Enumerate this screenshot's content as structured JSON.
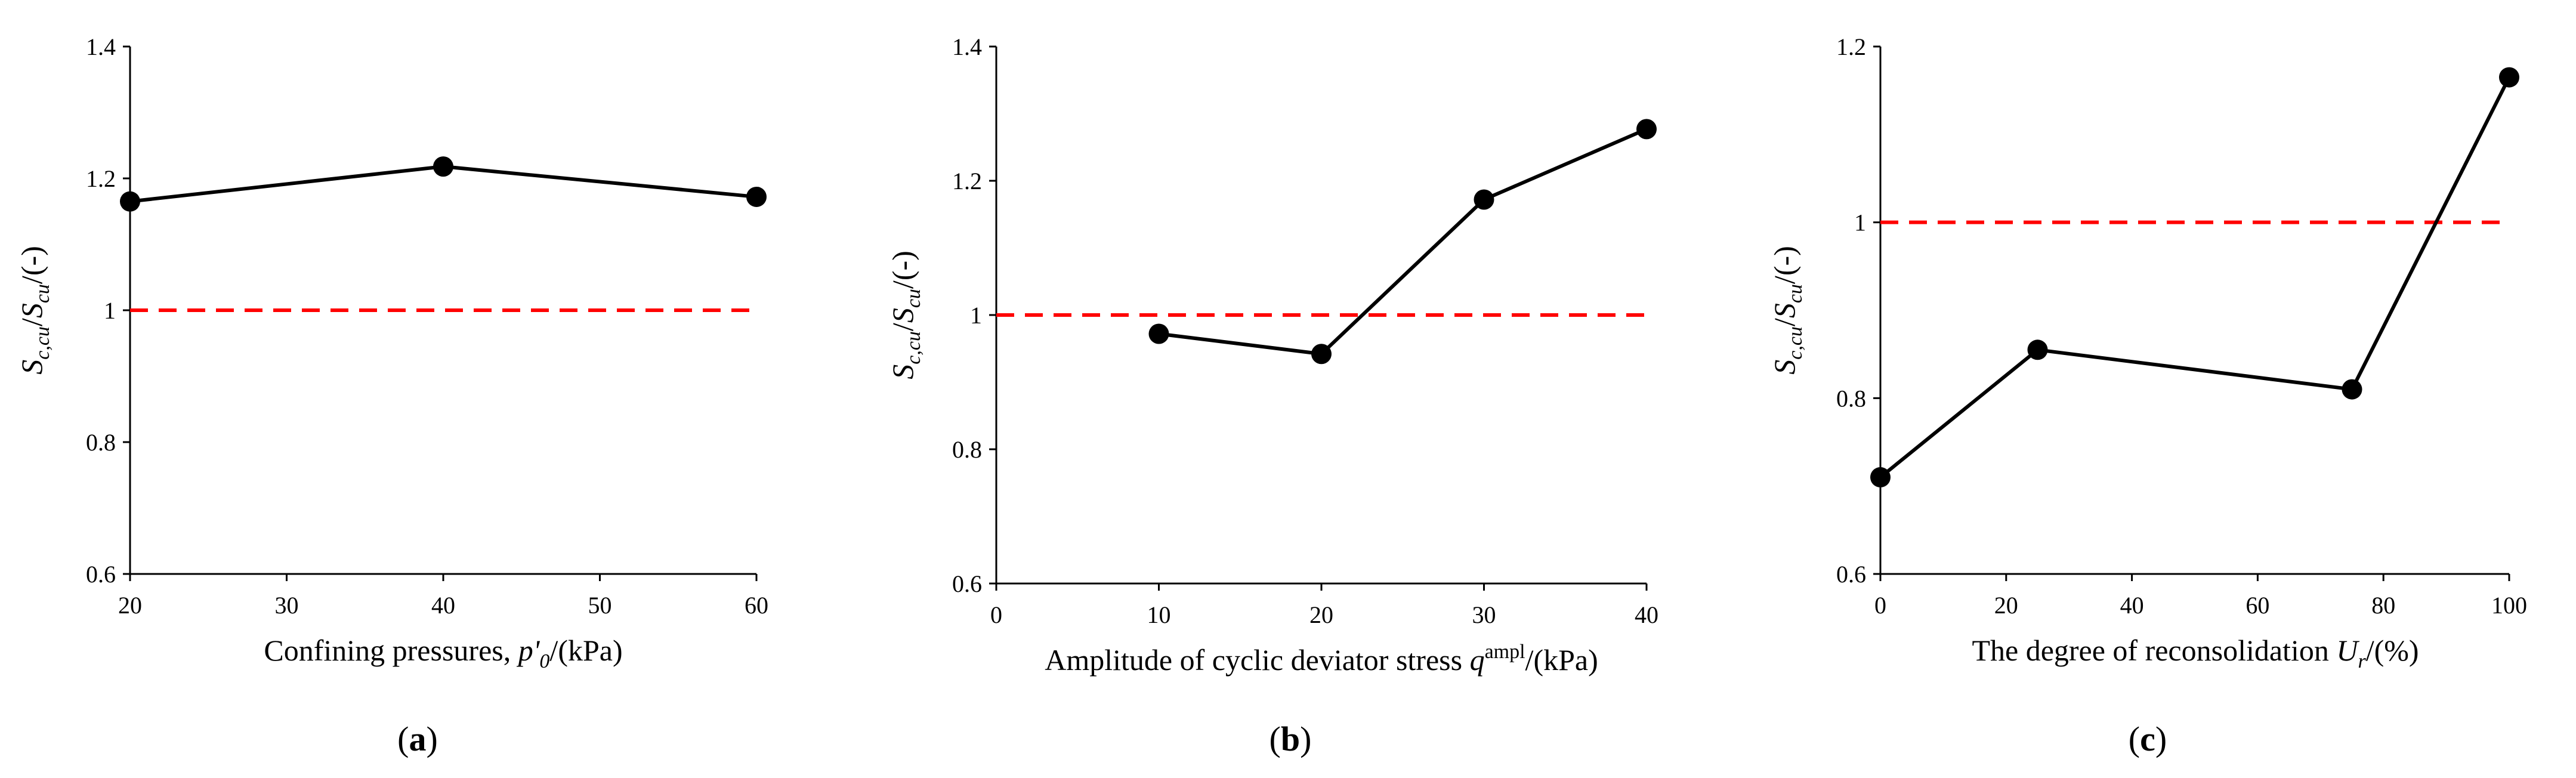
{
  "chart_data": [
    {
      "panel": "a",
      "type": "line",
      "caption_open": "(",
      "caption_letter": "a",
      "caption_close": ")",
      "xlabel_pre": "Confining pressures, ",
      "xlabel_var": "p'",
      "xlabel_sub": "0",
      "xlabel_post": "/(kPa)",
      "ylabel_var": "S",
      "ylabel_sub1": "c,cu",
      "ylabel_slash": "/",
      "ylabel_var2": "S",
      "ylabel_sub2": "cu",
      "ylabel_post": "/(-)",
      "xlim": [
        20,
        60
      ],
      "xticks": [
        20,
        30,
        40,
        50,
        60
      ],
      "ylim": [
        0.6,
        1.4
      ],
      "yticks": [
        "0.6",
        "0.8",
        "1",
        "1.2",
        "1.4"
      ],
      "x": [
        20,
        40,
        60
      ],
      "y": [
        1.165,
        1.218,
        1.172
      ],
      "reference_line": 1.0,
      "line_color": "#000000",
      "reference_color": "#ff0000"
    },
    {
      "panel": "b",
      "type": "line",
      "caption_open": "(",
      "caption_letter": "b",
      "caption_close": ")",
      "xlabel_pre": "Amplitude of cyclic deviator stress ",
      "xlabel_var": "q",
      "xlabel_sup": "ampl",
      "xlabel_post": "/(kPa)",
      "ylabel_var": "S",
      "ylabel_sub1": "c,cu",
      "ylabel_slash": "/",
      "ylabel_var2": "S",
      "ylabel_sub2": "cu",
      "ylabel_post": "/(-)",
      "xlim": [
        0,
        40
      ],
      "xticks": [
        0,
        10,
        20,
        30,
        40
      ],
      "ylim": [
        0.6,
        1.4
      ],
      "yticks": [
        "0.6",
        "0.8",
        "1",
        "1.2",
        "1.4"
      ],
      "x": [
        10,
        20,
        30,
        40
      ],
      "y": [
        0.972,
        0.942,
        1.172,
        1.277
      ],
      "reference_line": 1.0,
      "line_color": "#000000",
      "reference_color": "#ff0000"
    },
    {
      "panel": "c",
      "type": "line",
      "caption_open": "(",
      "caption_letter": "c",
      "caption_close": ")",
      "xlabel_pre": "The degree of reconsolidation ",
      "xlabel_var": "U",
      "xlabel_sub": "r",
      "xlabel_post": "/(%)",
      "ylabel_var": "S",
      "ylabel_sub1": "c,cu",
      "ylabel_slash": "/",
      "ylabel_var2": "S",
      "ylabel_sub2": "cu",
      "ylabel_post": "/(-)",
      "xlim": [
        0,
        100
      ],
      "xticks": [
        0,
        20,
        40,
        60,
        80,
        100
      ],
      "ylim": [
        0.6,
        1.2
      ],
      "yticks": [
        "0.6",
        "0.8",
        "1",
        "1.2"
      ],
      "x": [
        0,
        25,
        75,
        100
      ],
      "y": [
        0.71,
        0.855,
        0.81,
        1.165
      ],
      "reference_line": 1.0,
      "line_color": "#000000",
      "reference_color": "#ff0000"
    }
  ]
}
